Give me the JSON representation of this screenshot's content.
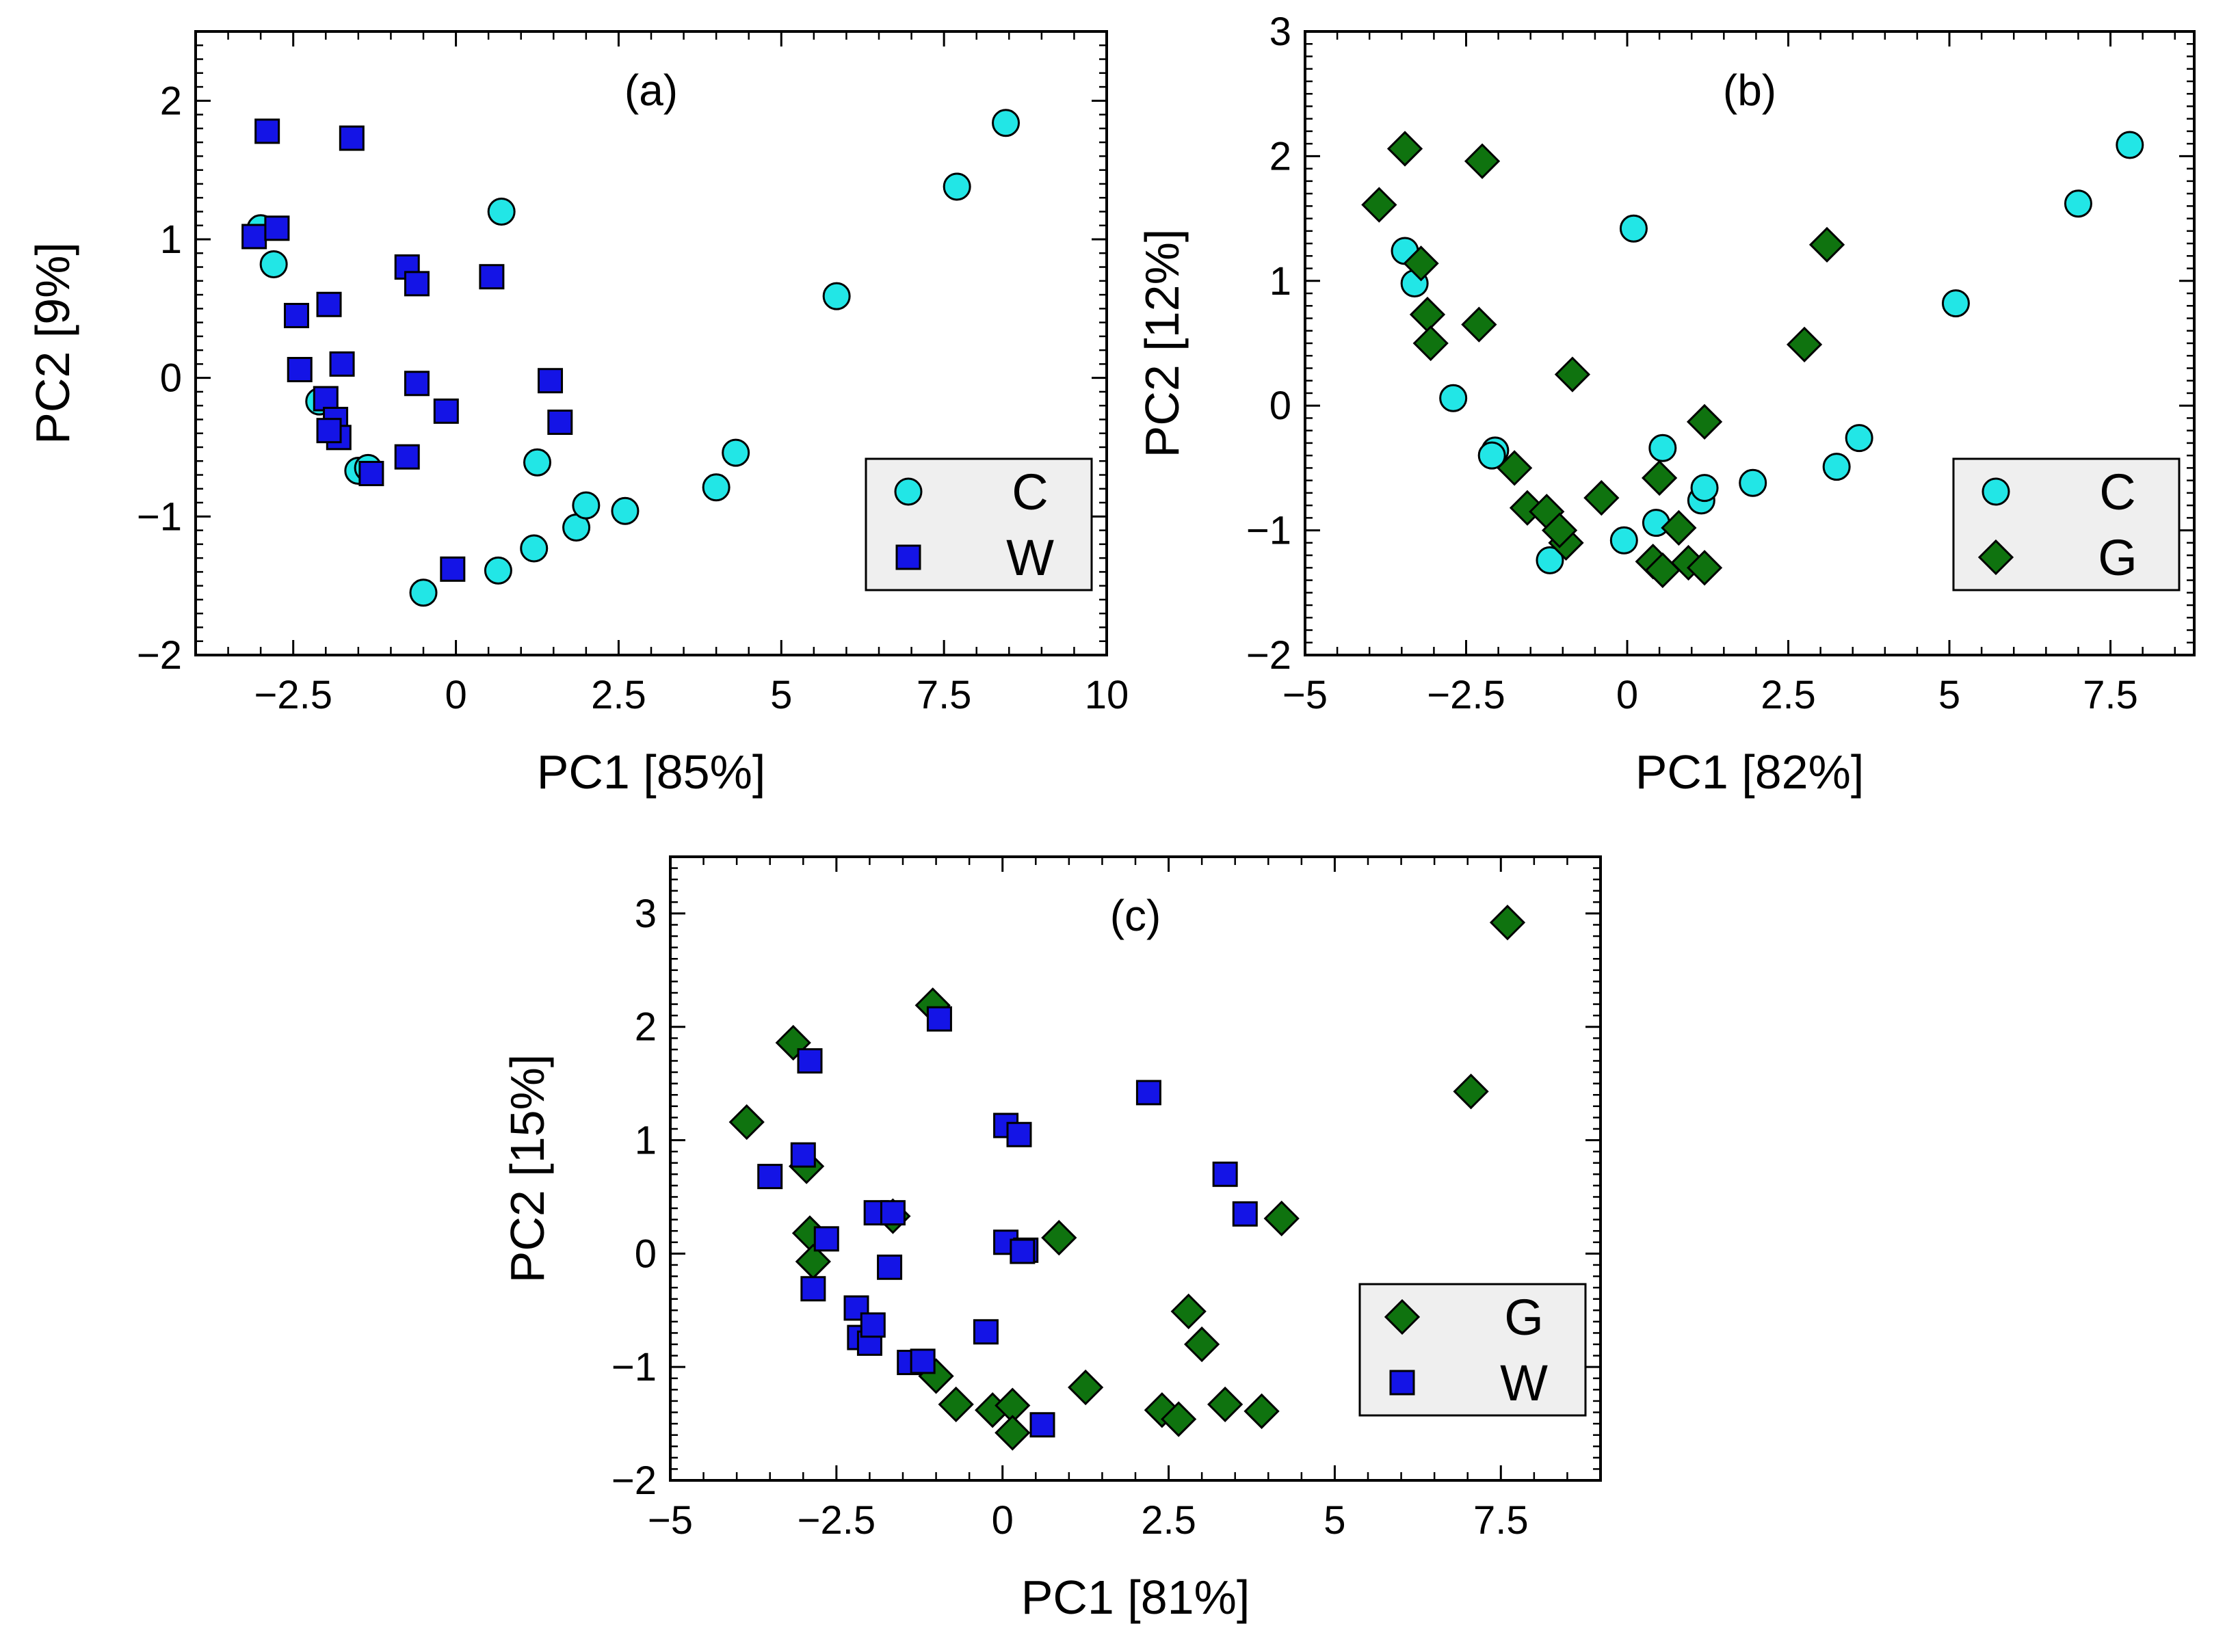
{
  "colors": {
    "C": "#22e6e6",
    "W": "#1414e6",
    "G": "#0f730f"
  },
  "chart_data": [
    {
      "type": "scatter",
      "title": "(a)",
      "xlabel": "PC1 [85%]",
      "ylabel": "PC2 [9%]",
      "xlim": [
        -4,
        10
      ],
      "ylim": [
        -2,
        2.5
      ],
      "xticks": [
        -2.5,
        0,
        2.5,
        5,
        7.5,
        10
      ],
      "xtick_labels": [
        "−2.5",
        "0",
        "2.5",
        "5",
        "7.5",
        "10"
      ],
      "yticks": [
        -2,
        -1,
        0,
        1,
        2
      ],
      "ytick_labels": [
        "−2",
        "−1",
        "0",
        "1",
        "2"
      ],
      "legend_position": "lower-right",
      "series": [
        {
          "name": "C",
          "marker": "circle",
          "color_key": "C",
          "points": [
            [
              -3.0,
              1.08
            ],
            [
              -2.8,
              0.82
            ],
            [
              -2.1,
              -0.17
            ],
            [
              -1.5,
              -0.67
            ],
            [
              -1.35,
              -0.65
            ],
            [
              -0.5,
              -1.55
            ],
            [
              0.7,
              1.2
            ],
            [
              0.65,
              -1.39
            ],
            [
              1.25,
              -0.61
            ],
            [
              1.2,
              -1.23
            ],
            [
              1.85,
              -1.08
            ],
            [
              2.0,
              -0.92
            ],
            [
              2.6,
              -0.96
            ],
            [
              4.0,
              -0.79
            ],
            [
              4.3,
              -0.54
            ],
            [
              5.85,
              0.59
            ],
            [
              7.7,
              1.38
            ],
            [
              8.45,
              1.84
            ]
          ]
        },
        {
          "name": "W",
          "marker": "square",
          "color_key": "W",
          "points": [
            [
              -3.1,
              1.02
            ],
            [
              -2.9,
              1.78
            ],
            [
              -2.75,
              1.08
            ],
            [
              -2.45,
              0.45
            ],
            [
              -2.4,
              0.06
            ],
            [
              -1.95,
              0.53
            ],
            [
              -2.0,
              -0.15
            ],
            [
              -1.85,
              -0.3
            ],
            [
              -1.8,
              -0.43
            ],
            [
              -1.75,
              0.1
            ],
            [
              -1.95,
              -0.38
            ],
            [
              -1.6,
              1.73
            ],
            [
              -1.3,
              -0.69
            ],
            [
              -0.75,
              0.8
            ],
            [
              -0.6,
              0.68
            ],
            [
              -0.6,
              -0.04
            ],
            [
              -0.75,
              -0.57
            ],
            [
              -0.15,
              -0.24
            ],
            [
              -0.05,
              -1.38
            ],
            [
              0.55,
              0.73
            ],
            [
              1.45,
              -0.02
            ],
            [
              1.6,
              -0.32
            ]
          ]
        }
      ]
    },
    {
      "type": "scatter",
      "title": "(b)",
      "xlabel": "PC1 [82%]",
      "ylabel": "PC2 [12%]",
      "xlim": [
        -5,
        8.8
      ],
      "ylim": [
        -2,
        3
      ],
      "xticks": [
        -5,
        -2.5,
        0,
        2.5,
        5,
        7.5
      ],
      "xtick_labels": [
        "−5",
        "−2.5",
        "0",
        "2.5",
        "5",
        "7.5"
      ],
      "yticks": [
        -2,
        -1,
        0,
        1,
        2,
        3
      ],
      "ytick_labels": [
        "−2",
        "−1",
        "0",
        "1",
        "2",
        "3"
      ],
      "legend_position": "lower-right",
      "series": [
        {
          "name": "C",
          "marker": "circle",
          "color_key": "C",
          "points": [
            [
              -3.45,
              1.24
            ],
            [
              -3.3,
              0.98
            ],
            [
              -2.7,
              0.06
            ],
            [
              -2.05,
              -0.36
            ],
            [
              -2.1,
              -0.4
            ],
            [
              -1.2,
              -1.24
            ],
            [
              -0.05,
              -1.08
            ],
            [
              0.1,
              1.42
            ],
            [
              0.45,
              -0.94
            ],
            [
              0.55,
              -0.34
            ],
            [
              1.15,
              -0.76
            ],
            [
              1.2,
              -0.66
            ],
            [
              1.95,
              -0.62
            ],
            [
              3.25,
              -0.49
            ],
            [
              3.6,
              -0.26
            ],
            [
              5.1,
              0.82
            ],
            [
              7.0,
              1.62
            ],
            [
              7.8,
              2.09
            ]
          ]
        },
        {
          "name": "G",
          "marker": "diamond",
          "color_key": "G",
          "points": [
            [
              -3.85,
              1.61
            ],
            [
              -3.45,
              2.06
            ],
            [
              -3.2,
              1.14
            ],
            [
              -3.1,
              0.73
            ],
            [
              -3.05,
              0.5
            ],
            [
              -2.25,
              1.96
            ],
            [
              -2.3,
              0.65
            ],
            [
              -1.75,
              -0.5
            ],
            [
              -1.55,
              -0.82
            ],
            [
              -1.25,
              -0.85
            ],
            [
              -0.95,
              -1.1
            ],
            [
              -1.05,
              -1.0
            ],
            [
              -0.85,
              0.25
            ],
            [
              -0.4,
              -0.74
            ],
            [
              0.4,
              -1.25
            ],
            [
              0.5,
              -0.58
            ],
            [
              0.55,
              -1.32
            ],
            [
              0.8,
              -0.98
            ],
            [
              0.95,
              -1.26
            ],
            [
              1.2,
              -1.3
            ],
            [
              1.2,
              -0.13
            ],
            [
              2.75,
              0.49
            ],
            [
              3.1,
              1.29
            ]
          ]
        }
      ]
    },
    {
      "type": "scatter",
      "title": "(c)",
      "xlabel": "PC1 [81%]",
      "ylabel": "PC2 [15%]",
      "xlim": [
        -5,
        9
      ],
      "ylim": [
        -2,
        3.5
      ],
      "xticks": [
        -5,
        -2.5,
        0,
        2.5,
        5,
        7.5
      ],
      "xtick_labels": [
        "−5",
        "−2.5",
        "0",
        "2.5",
        "5",
        "7.5"
      ],
      "yticks": [
        -2,
        -1,
        0,
        1,
        2,
        3
      ],
      "ytick_labels": [
        "−2",
        "−1",
        "0",
        "1",
        "2",
        "3"
      ],
      "legend_position": "lower-right",
      "series": [
        {
          "name": "G",
          "marker": "diamond",
          "color_key": "G",
          "points": [
            [
              -3.85,
              1.16
            ],
            [
              -3.15,
              1.86
            ],
            [
              -2.95,
              0.77
            ],
            [
              -2.9,
              0.18
            ],
            [
              -2.85,
              -0.07
            ],
            [
              -1.65,
              0.33
            ],
            [
              -1.05,
              2.19
            ],
            [
              -1.0,
              -1.08
            ],
            [
              -0.7,
              -1.33
            ],
            [
              -0.15,
              -1.38
            ],
            [
              0.15,
              -1.34
            ],
            [
              0.15,
              -1.58
            ],
            [
              0.85,
              0.14
            ],
            [
              1.25,
              -1.18
            ],
            [
              2.4,
              -1.38
            ],
            [
              2.65,
              -1.46
            ],
            [
              2.8,
              -0.51
            ],
            [
              3.0,
              -0.8
            ],
            [
              3.35,
              -1.33
            ],
            [
              3.9,
              -1.39
            ],
            [
              4.2,
              0.31
            ],
            [
              7.05,
              1.43
            ],
            [
              7.6,
              2.92
            ]
          ]
        },
        {
          "name": "W",
          "marker": "square",
          "color_key": "W",
          "points": [
            [
              -3.5,
              0.68
            ],
            [
              -3.0,
              0.87
            ],
            [
              -2.9,
              1.7
            ],
            [
              -2.85,
              -0.31
            ],
            [
              -2.65,
              0.13
            ],
            [
              -2.2,
              -0.48
            ],
            [
              -2.15,
              -0.74
            ],
            [
              -2.0,
              -0.79
            ],
            [
              -1.95,
              -0.63
            ],
            [
              -1.9,
              0.36
            ],
            [
              -1.65,
              0.36
            ],
            [
              -1.7,
              -0.12
            ],
            [
              -1.4,
              -0.96
            ],
            [
              -1.2,
              -0.95
            ],
            [
              -0.95,
              2.07
            ],
            [
              -0.25,
              -0.69
            ],
            [
              0.05,
              1.13
            ],
            [
              0.25,
              1.05
            ],
            [
              0.05,
              0.1
            ],
            [
              0.35,
              0.03
            ],
            [
              0.3,
              0.02
            ],
            [
              0.6,
              -1.51
            ],
            [
              2.2,
              1.42
            ],
            [
              3.35,
              0.7
            ],
            [
              3.65,
              0.35
            ]
          ]
        }
      ]
    }
  ]
}
